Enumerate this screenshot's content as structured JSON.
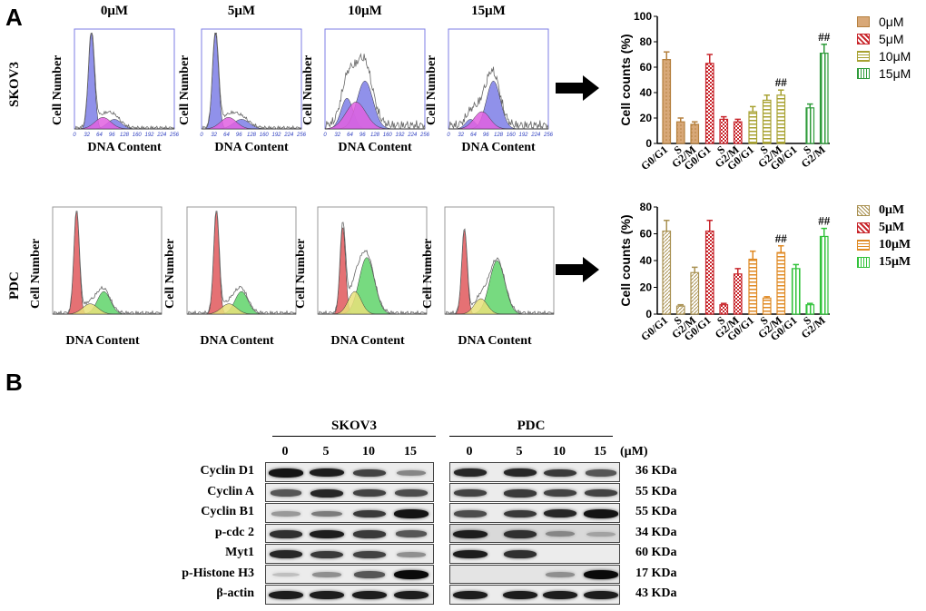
{
  "panels": {
    "a": "A",
    "b": "B"
  },
  "flow": {
    "concentrations": [
      "0μM",
      "5μM",
      "10μM",
      "15μM"
    ],
    "rows": [
      "SKOV3",
      "PDC"
    ],
    "ylabel": "Cell Number",
    "xlabel": "DNA Content",
    "skov3_ticks": [
      "0",
      "32",
      "64",
      "96",
      "128",
      "160",
      "192",
      "224",
      "256"
    ]
  },
  "colors": {
    "skov3_0": "#b5803e",
    "skov3_5": "#c8262c",
    "skov3_10": "#a8a232",
    "skov3_15": "#2e9b3a",
    "pdc_0": "#a99152",
    "pdc_5": "#c8262c",
    "pdc_10": "#e08a24",
    "pdc_15": "#31c23a",
    "hist_blue": "#7c7ee6",
    "hist_magenta": "#e060e0",
    "hist_red": "#e0585c",
    "hist_green": "#5fd36a",
    "hist_yellow": "#e8e07a"
  },
  "chart_data": [
    {
      "type": "bar",
      "name": "SKOV3",
      "categories": [
        "G0/G1",
        "S",
        "G2/M"
      ],
      "ylabel": "Cell counts (%)",
      "ylim": [
        0,
        100
      ],
      "yticks": [
        0,
        20,
        40,
        60,
        80,
        100
      ],
      "series": [
        {
          "name": "0μM",
          "values": [
            66,
            17,
            15
          ],
          "errors": [
            6,
            3,
            2
          ]
        },
        {
          "name": "5μM",
          "values": [
            63,
            19,
            17
          ],
          "errors": [
            7,
            2,
            2
          ]
        },
        {
          "name": "10μM",
          "values": [
            25,
            34,
            38
          ],
          "errors": [
            4,
            4,
            4
          ]
        },
        {
          "name": "15μM",
          "values": [
            0,
            28,
            71
          ],
          "errors": [
            0,
            3,
            7
          ]
        }
      ],
      "annotations": [
        {
          "series": 2,
          "category": 2,
          "text": "##"
        },
        {
          "series": 3,
          "category": 2,
          "text": "##"
        }
      ]
    },
    {
      "type": "bar",
      "name": "PDC",
      "categories": [
        "G0/G1",
        "S",
        "G2/M"
      ],
      "ylabel": "Cell counts (%)",
      "ylim": [
        0,
        80
      ],
      "yticks": [
        0,
        20,
        40,
        60,
        80
      ],
      "series": [
        {
          "name": "0μM",
          "values": [
            62,
            6,
            31
          ],
          "errors": [
            8,
            1,
            4
          ]
        },
        {
          "name": "5μM",
          "values": [
            62,
            7,
            30
          ],
          "errors": [
            8,
            1,
            4
          ]
        },
        {
          "name": "10μM",
          "values": [
            41,
            12,
            46
          ],
          "errors": [
            6,
            1,
            5
          ]
        },
        {
          "name": "15μM",
          "values": [
            34,
            7,
            58
          ],
          "errors": [
            3,
            1,
            6
          ]
        }
      ],
      "annotations": [
        {
          "series": 2,
          "category": 2,
          "text": "##"
        },
        {
          "series": 3,
          "category": 2,
          "text": "##"
        }
      ]
    }
  ],
  "western": {
    "groups": [
      "SKOV3",
      "PDC"
    ],
    "concentrations": [
      "0",
      "5",
      "10",
      "15"
    ],
    "unit": "(μM)",
    "proteins": [
      {
        "name": "Cyclin D1",
        "kda": "36 KDa",
        "skov3": [
          0.95,
          0.9,
          0.7,
          0.35
        ],
        "pdc": [
          0.85,
          0.85,
          0.75,
          0.6
        ]
      },
      {
        "name": "Cyclin A",
        "kda": "55 KDa",
        "skov3": [
          0.6,
          0.85,
          0.7,
          0.65
        ],
        "pdc": [
          0.7,
          0.75,
          0.7,
          0.7
        ]
      },
      {
        "name": "Cyclin B1",
        "kda": "55 KDa",
        "skov3": [
          0.25,
          0.4,
          0.75,
          0.95
        ],
        "pdc": [
          0.65,
          0.75,
          0.85,
          0.95
        ]
      },
      {
        "name": "p-cdc 2",
        "kda": "34 KDa",
        "skov3": [
          0.8,
          0.9,
          0.75,
          0.6
        ],
        "pdc": [
          0.9,
          0.8,
          0.35,
          0.2
        ]
      },
      {
        "name": "Myt1",
        "kda": "60 KDa",
        "skov3": [
          0.85,
          0.75,
          0.7,
          0.3
        ],
        "pdc": [
          0.9,
          0.8,
          0.0,
          0.0
        ]
      },
      {
        "name": "p-Histone  H3",
        "kda": "17 KDa",
        "skov3": [
          0.05,
          0.3,
          0.6,
          1.0
        ],
        "pdc": [
          0.0,
          0.0,
          0.3,
          1.0
        ]
      },
      {
        "name": "β-actin",
        "kda": "43 KDa",
        "skov3": [
          0.9,
          0.9,
          0.9,
          0.9
        ],
        "pdc": [
          0.9,
          0.9,
          0.9,
          0.9
        ]
      }
    ]
  }
}
